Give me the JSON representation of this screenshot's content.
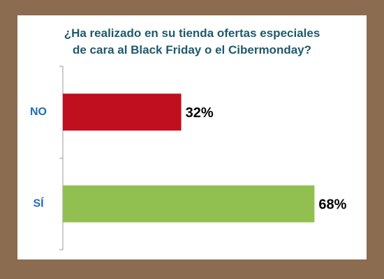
{
  "chart_data": {
    "type": "bar",
    "orientation": "horizontal",
    "title": "¿Ha realizado en su tienda ofertas especiales de cara al Black Friday o el Cibermonday?",
    "categories": [
      "NO",
      "SÍ"
    ],
    "values": [
      32,
      68
    ],
    "value_labels": [
      "32%",
      "68%"
    ],
    "colors": [
      "#c00f1f",
      "#92c050"
    ]
  }
}
